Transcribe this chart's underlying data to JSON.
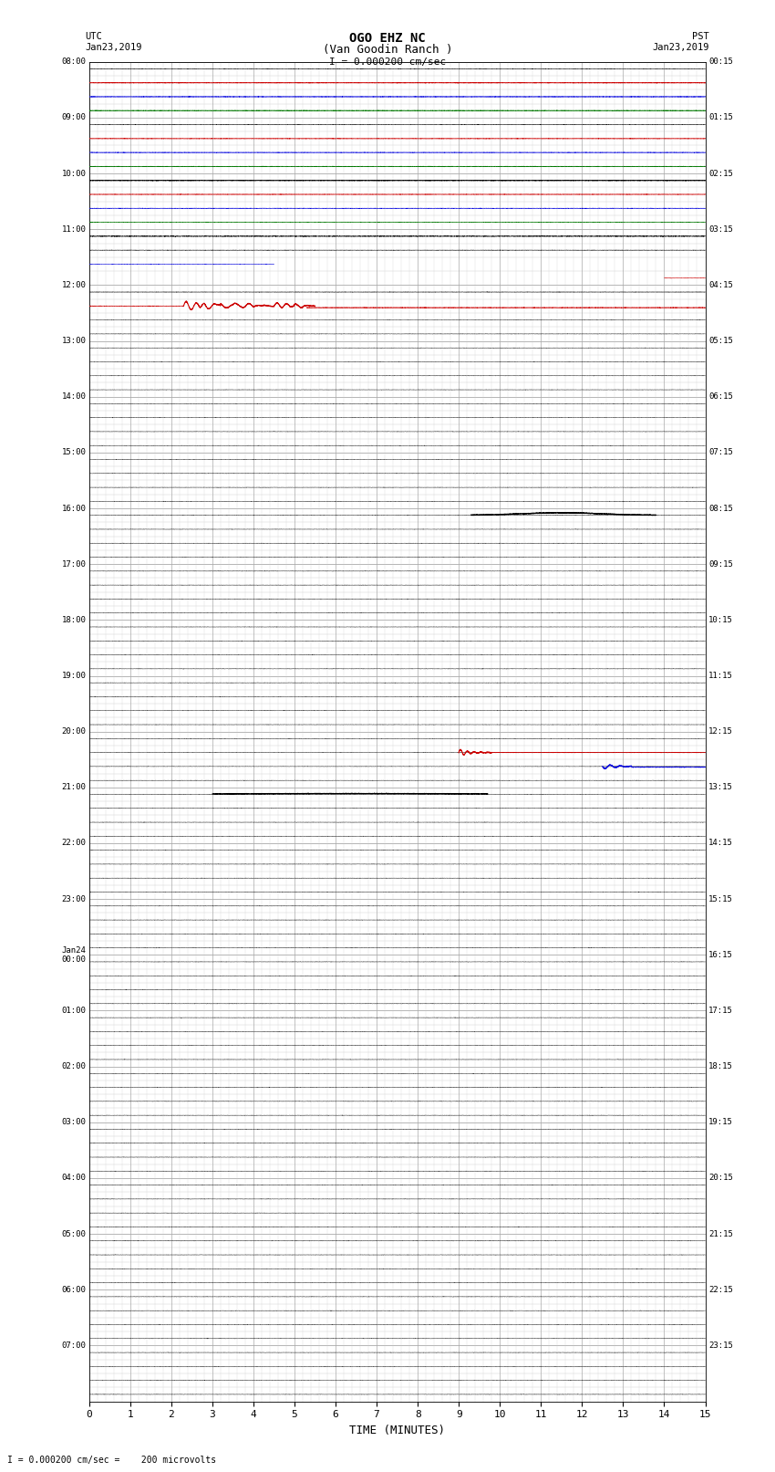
{
  "title_line1": "OGO EHZ NC",
  "title_line2": "(Van Goodin Ranch )",
  "scale_label": "I = 0.000200 cm/sec",
  "bottom_label": "I = 0.000200 cm/sec =    200 microvolts",
  "xlabel": "TIME (MINUTES)",
  "xlim": [
    0,
    15
  ],
  "xticks": [
    0,
    1,
    2,
    3,
    4,
    5,
    6,
    7,
    8,
    9,
    10,
    11,
    12,
    13,
    14,
    15
  ],
  "background_color": "#ffffff",
  "grid_major_color": "#aaaaaa",
  "grid_minor_color": "#cccccc",
  "fig_width": 8.5,
  "fig_height": 16.13,
  "left_times_utc": [
    "08:00",
    "09:00",
    "10:00",
    "11:00",
    "12:00",
    "13:00",
    "14:00",
    "15:00",
    "16:00",
    "17:00",
    "18:00",
    "19:00",
    "20:00",
    "21:00",
    "22:00",
    "23:00",
    "Jan24\n00:00",
    "01:00",
    "02:00",
    "03:00",
    "04:00",
    "05:00",
    "06:00",
    "07:00"
  ],
  "right_times_pst": [
    "00:15",
    "01:15",
    "02:15",
    "03:15",
    "04:15",
    "05:15",
    "06:15",
    "07:15",
    "08:15",
    "09:15",
    "10:15",
    "11:15",
    "12:15",
    "13:15",
    "14:15",
    "15:15",
    "16:15",
    "17:15",
    "18:15",
    "19:15",
    "20:15",
    "21:15",
    "22:15",
    "23:15"
  ],
  "n_rows": 24,
  "traces_per_row": 4,
  "seismic_color": "#000000",
  "blue_color": "#0000dd",
  "red_color": "#cc0000",
  "green_color": "#007700",
  "noise_tiny": 0.005,
  "noise_small": 0.01,
  "noise_medium": 0.02
}
